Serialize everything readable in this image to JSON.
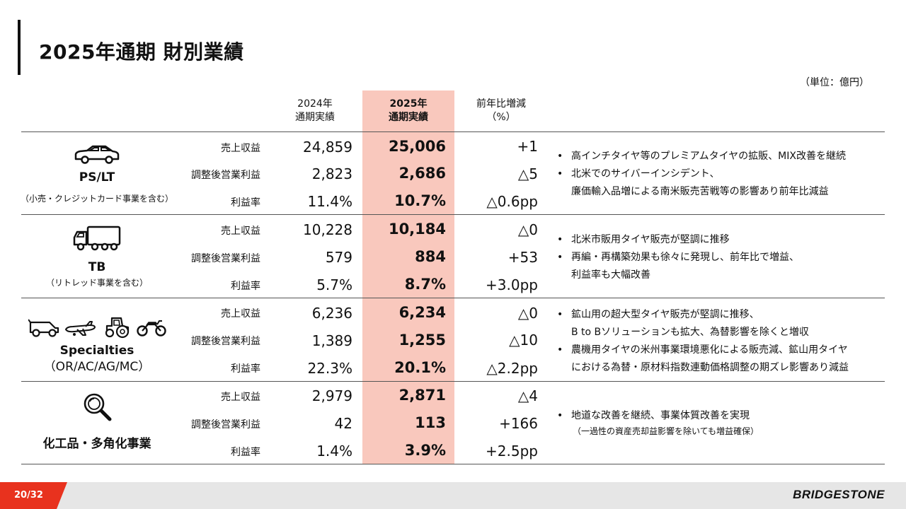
{
  "header": {
    "title": "2025年通期 財別業績",
    "unit": "（単位：億円）"
  },
  "columns": {
    "y2024_line1": "2024年",
    "y2024_line2": "通期実績",
    "y2025_line1": "2025年",
    "y2025_line2": "通期実績",
    "change_line1": "前年比増減",
    "change_line2": "（%）"
  },
  "accent_color": "#e8321e",
  "highlight_color": "#f9c8bd",
  "segments": [
    {
      "name": "PS/LT",
      "sub": "（小売・クレジットカード事業を含む）",
      "icon": "car-icon",
      "rows": [
        {
          "label": "売上収益",
          "y2024": "24,859",
          "y2025": "25,006",
          "change": "+1"
        },
        {
          "label": "調整後営業利益",
          "y2024": "2,823",
          "y2025": "2,686",
          "change": "△5"
        },
        {
          "label": "利益率",
          "y2024": "11.4%",
          "y2025": "10.7%",
          "change": "△0.6pp"
        }
      ],
      "bullets": [
        {
          "text": "高インチタイヤ等のプレミアムタイヤの拡販、MIX改善を継続"
        },
        {
          "text": "北米でのサイバーインシデント、",
          "cont": "廉価輸入品増による南米販売苦戦等の影響あり前年比減益"
        }
      ]
    },
    {
      "name": "TB",
      "sub": "（リトレッド事業を含む）",
      "icon": "truck-icon",
      "rows": [
        {
          "label": "売上収益",
          "y2024": "10,228",
          "y2025": "10,184",
          "change": "△0"
        },
        {
          "label": "調整後営業利益",
          "y2024": "579",
          "y2025": "884",
          "change": "+53"
        },
        {
          "label": "利益率",
          "y2024": "5.7%",
          "y2025": "8.7%",
          "change": "+3.0pp"
        }
      ],
      "bullets": [
        {
          "text": "北米市販用タイヤ販売が堅調に推移"
        },
        {
          "text": "再編・再構築効果も徐々に発現し、前年比で増益、",
          "cont": "利益率も大幅改善"
        }
      ]
    },
    {
      "name": "Specialties",
      "sub": "（OR/AC/AG/MC）",
      "icons": [
        "mining-truck-icon",
        "airplane-icon",
        "tractor-icon",
        "motorcycle-icon"
      ],
      "rows": [
        {
          "label": "売上収益",
          "y2024": "6,236",
          "y2025": "6,234",
          "change": "△0"
        },
        {
          "label": "調整後営業利益",
          "y2024": "1,389",
          "y2025": "1,255",
          "change": "△10"
        },
        {
          "label": "利益率",
          "y2024": "22.3%",
          "y2025": "20.1%",
          "change": "△2.2pp"
        }
      ],
      "bullets": [
        {
          "text": "鉱山用の超大型タイヤ販売が堅調に推移、",
          "cont": "B to Bソリューションも拡大、為替影響を除くと増収"
        },
        {
          "text": "農機用タイヤの米州事業環境悪化による販売減、鉱山用タイヤ",
          "cont": "における為替・原材料指数連動価格調整の期ズレ影響あり減益"
        }
      ]
    },
    {
      "name": "化工品・多角化事業",
      "icon": "magnifier-icon",
      "rows": [
        {
          "label": "売上収益",
          "y2024": "2,979",
          "y2025": "2,871",
          "change": "△4"
        },
        {
          "label": "調整後営業利益",
          "y2024": "42",
          "y2025": "113",
          "change": "+166"
        },
        {
          "label": "利益率",
          "y2024": "1.4%",
          "y2025": "3.9%",
          "change": "+2.5pp"
        }
      ],
      "bullets": [
        {
          "text": "地道な改善を継続、事業体質改善を実現",
          "note": "（一過性の資産売却益影響を除いても増益確保）"
        }
      ]
    }
  ],
  "footer": {
    "page": "20/32",
    "brand": "BRIDGESTONE"
  }
}
